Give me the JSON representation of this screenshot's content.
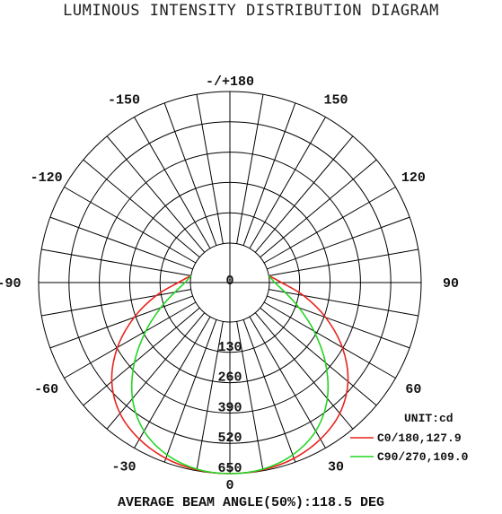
{
  "title": "LUMINOUS INTENSITY DISTRIBUTION DIAGRAM",
  "footer": "AVERAGE BEAM ANGLE(50%):118.5 DEG",
  "unit_label": "UNIT:cd",
  "colors": {
    "c0": "#e8231c",
    "c90": "#22d622",
    "grid": "#000000"
  },
  "chart_data": {
    "type": "polar",
    "title": "LUMINOUS INTENSITY DISTRIBUTION DIAGRAM",
    "angle_labels": [
      {
        "angle": 180,
        "text": "-/+180"
      },
      {
        "angle": -150,
        "text": "-150"
      },
      {
        "angle": 150,
        "text": "150"
      },
      {
        "angle": -120,
        "text": "-120"
      },
      {
        "angle": 120,
        "text": "120"
      },
      {
        "angle": -90,
        "text": "-90"
      },
      {
        "angle": 90,
        "text": "90"
      },
      {
        "angle": -60,
        "text": "-60"
      },
      {
        "angle": 60,
        "text": "60"
      },
      {
        "angle": -30,
        "text": "-30"
      },
      {
        "angle": 30,
        "text": "30"
      },
      {
        "angle": 0,
        "text": "0"
      }
    ],
    "radial_ticks": [
      0,
      130,
      260,
      390,
      520,
      650
    ],
    "radial_max": 650,
    "legend_position": "bottom-right",
    "series": [
      {
        "name": "C0/180,127.9",
        "color": "#e8231c",
        "angles": [
          0,
          10,
          20,
          30,
          40,
          50,
          60,
          70,
          80,
          90,
          100
        ],
        "values": [
          650,
          646,
          633,
          606,
          563,
          491,
          387,
          267,
          151,
          52,
          0
        ]
      },
      {
        "name": "C90/270,109.0",
        "color": "#22d622",
        "angles": [
          0,
          10,
          20,
          30,
          40,
          50,
          60,
          70,
          80,
          90,
          100
        ],
        "values": [
          650,
          643,
          617,
          566,
          480,
          365,
          247,
          146,
          70,
          23,
          0
        ]
      }
    ]
  }
}
